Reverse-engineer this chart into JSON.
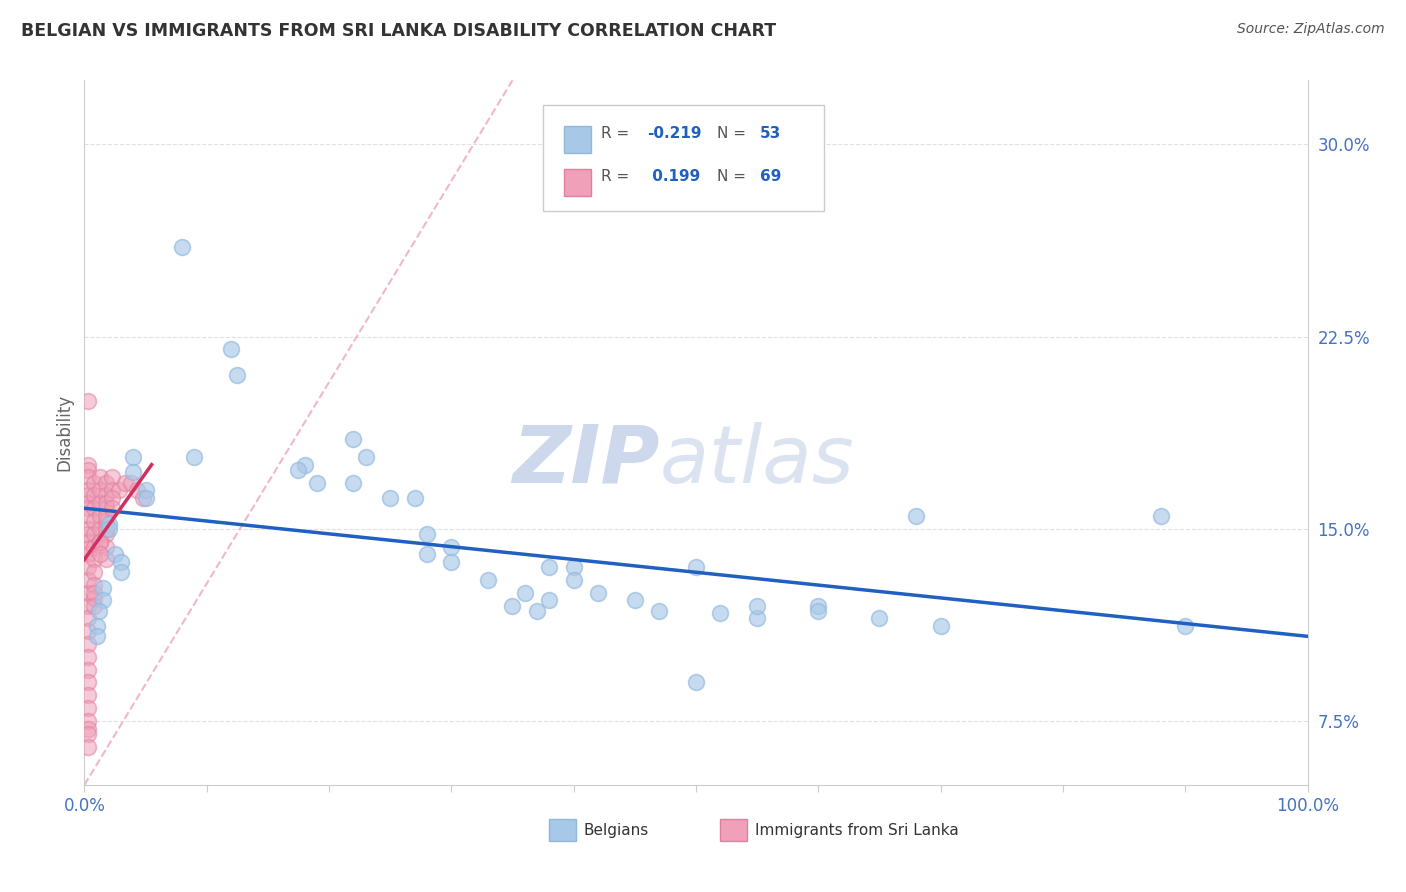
{
  "title": "BELGIAN VS IMMIGRANTS FROM SRI LANKA DISABILITY CORRELATION CHART",
  "source": "Source: ZipAtlas.com",
  "ylabel": "Disability",
  "xlim": [
    0,
    1.0
  ],
  "ylim": [
    0.05,
    0.325
  ],
  "yticks": [
    0.075,
    0.15,
    0.225,
    0.3
  ],
  "ytick_labels": [
    "7.5%",
    "15.0%",
    "22.5%",
    "30.0%"
  ],
  "xticks": [
    0.0,
    0.1,
    0.2,
    0.3,
    0.4,
    0.5,
    0.6,
    0.7,
    0.8,
    0.9,
    1.0
  ],
  "xtick_labels_show": [
    "0.0%",
    "",
    "",
    "",
    "",
    "",
    "",
    "",
    "",
    "",
    "100.0%"
  ],
  "blue_color": "#A8C8E8",
  "blue_edge_color": "#90B8DC",
  "pink_color": "#F0A0B8",
  "pink_edge_color": "#E080A0",
  "blue_line_color": "#2060C0",
  "pink_line_color": "#D03060",
  "diag_line_color": "#F0B0C0",
  "axis_tick_color": "#4472C4",
  "ylabel_color": "#666666",
  "background": "#FFFFFF",
  "watermark_zip": "ZIP",
  "watermark_atlas": "atlas",
  "legend_blue_r": "-0.219",
  "legend_blue_n": "53",
  "legend_pink_r": "0.199",
  "legend_pink_n": "69",
  "blue_scatter_x": [
    0.08,
    0.12,
    0.125,
    0.09,
    0.04,
    0.04,
    0.05,
    0.05,
    0.02,
    0.02,
    0.025,
    0.03,
    0.03,
    0.015,
    0.015,
    0.012,
    0.01,
    0.01,
    0.18,
    0.19,
    0.22,
    0.23,
    0.175,
    0.27,
    0.28,
    0.3,
    0.22,
    0.25,
    0.33,
    0.36,
    0.38,
    0.4,
    0.35,
    0.37,
    0.28,
    0.3,
    0.5,
    0.52,
    0.55,
    0.6,
    0.88,
    0.9,
    0.68,
    0.38,
    0.4,
    0.42,
    0.45,
    0.47,
    0.55,
    0.6,
    0.65,
    0.7,
    0.5
  ],
  "blue_scatter_y": [
    0.26,
    0.22,
    0.21,
    0.178,
    0.178,
    0.172,
    0.165,
    0.162,
    0.152,
    0.15,
    0.14,
    0.137,
    0.133,
    0.127,
    0.122,
    0.118,
    0.112,
    0.108,
    0.175,
    0.168,
    0.185,
    0.178,
    0.173,
    0.162,
    0.14,
    0.137,
    0.168,
    0.162,
    0.13,
    0.125,
    0.122,
    0.135,
    0.12,
    0.118,
    0.148,
    0.143,
    0.135,
    0.117,
    0.115,
    0.12,
    0.155,
    0.112,
    0.155,
    0.135,
    0.13,
    0.125,
    0.122,
    0.118,
    0.12,
    0.118,
    0.115,
    0.112,
    0.09
  ],
  "pink_scatter_x": [
    0.003,
    0.003,
    0.003,
    0.003,
    0.003,
    0.003,
    0.003,
    0.003,
    0.003,
    0.003,
    0.003,
    0.003,
    0.003,
    0.003,
    0.003,
    0.003,
    0.003,
    0.003,
    0.003,
    0.003,
    0.003,
    0.003,
    0.003,
    0.003,
    0.003,
    0.008,
    0.008,
    0.008,
    0.008,
    0.008,
    0.008,
    0.008,
    0.008,
    0.008,
    0.008,
    0.013,
    0.013,
    0.013,
    0.013,
    0.013,
    0.018,
    0.018,
    0.018,
    0.018,
    0.018,
    0.018,
    0.018,
    0.023,
    0.023,
    0.028,
    0.033,
    0.038,
    0.043,
    0.048,
    0.013,
    0.018,
    0.023,
    0.003,
    0.003,
    0.003,
    0.003,
    0.008,
    0.008,
    0.013,
    0.013,
    0.018,
    0.018,
    0.023,
    0.003
  ],
  "pink_scatter_y": [
    0.2,
    0.175,
    0.173,
    0.17,
    0.165,
    0.163,
    0.16,
    0.158,
    0.155,
    0.15,
    0.148,
    0.145,
    0.142,
    0.14,
    0.135,
    0.13,
    0.125,
    0.12,
    0.115,
    0.11,
    0.105,
    0.1,
    0.095,
    0.09,
    0.085,
    0.168,
    0.163,
    0.158,
    0.153,
    0.148,
    0.143,
    0.138,
    0.133,
    0.128,
    0.123,
    0.17,
    0.165,
    0.16,
    0.155,
    0.15,
    0.168,
    0.163,
    0.158,
    0.153,
    0.148,
    0.143,
    0.138,
    0.17,
    0.165,
    0.165,
    0.168,
    0.168,
    0.165,
    0.162,
    0.145,
    0.16,
    0.162,
    0.08,
    0.075,
    0.072,
    0.07,
    0.125,
    0.12,
    0.145,
    0.14,
    0.155,
    0.15,
    0.158,
    0.065
  ],
  "blue_line_x": [
    0.0,
    1.0
  ],
  "blue_line_y": [
    0.158,
    0.108
  ],
  "pink_line_x": [
    0.0,
    0.055
  ],
  "pink_line_y": [
    0.138,
    0.175
  ],
  "diag_line_x": [
    0.0,
    0.35
  ],
  "diag_line_y": [
    0.05,
    0.325
  ]
}
